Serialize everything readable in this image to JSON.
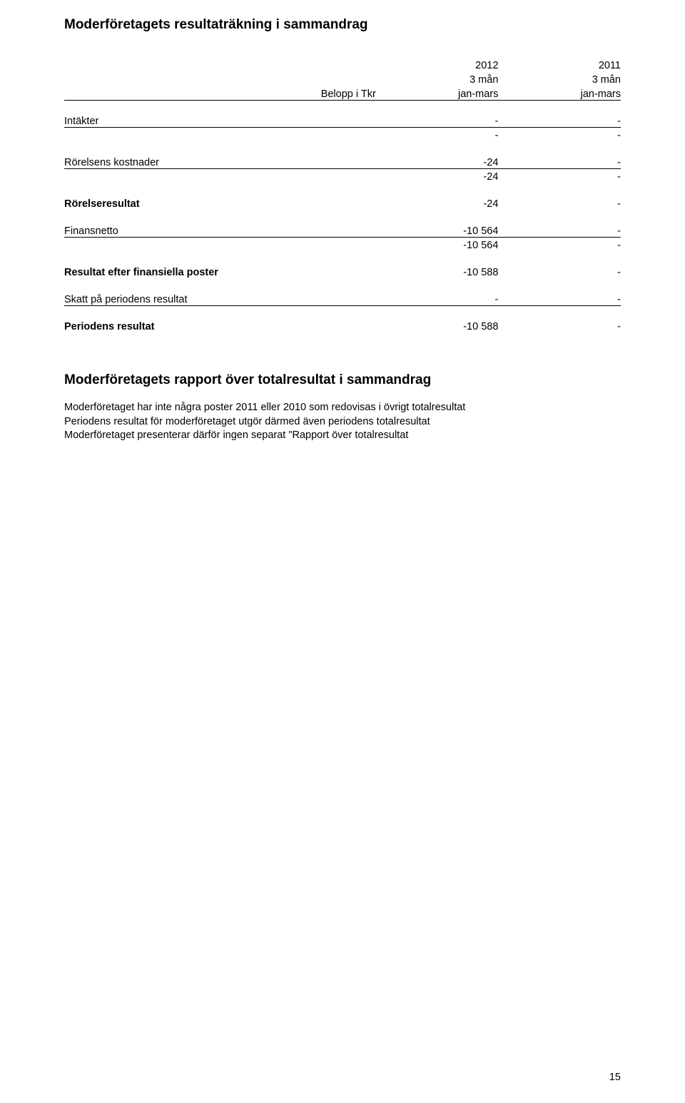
{
  "title": "Moderföretagets resultaträkning i sammandrag",
  "header": {
    "row_label": "Belopp i Tkr",
    "col1": {
      "year": "2012",
      "period": "3 mån",
      "range": "jan-mars"
    },
    "col2": {
      "year": "2011",
      "period": "3 mån",
      "range": "jan-mars"
    }
  },
  "rows": {
    "intakter": {
      "label": "Intäkter",
      "v1": "-",
      "v2": "-"
    },
    "intakter_sum": {
      "v1": "-",
      "v2": "-"
    },
    "rorelsens_kostnader": {
      "label": "Rörelsens kostnader",
      "v1": "-24",
      "v2": "-"
    },
    "rorelsens_kostnader_sum": {
      "v1": "-24",
      "v2": "-"
    },
    "rorelseresultat": {
      "label": "Rörelseresultat",
      "v1": "-24",
      "v2": "-"
    },
    "finansnetto": {
      "label": "Finansnetto",
      "v1": "-10 564",
      "v2": "-"
    },
    "finansnetto_sum": {
      "v1": "-10 564",
      "v2": "-"
    },
    "resultat_efter_fin": {
      "label": "Resultat efter finansiella poster",
      "v1": "-10 588",
      "v2": "-"
    },
    "skatt": {
      "label": "Skatt på periodens resultat",
      "v1": "-",
      "v2": "-"
    },
    "periodens_resultat": {
      "label": "Periodens resultat",
      "v1": "-10 588",
      "v2": "-"
    }
  },
  "section2": {
    "title": "Moderföretagets rapport över totalresultat i sammandrag",
    "line1": "Moderföretaget har inte några poster 2011 eller 2010 som redovisas i övrigt totalresultat",
    "line2": "Periodens resultat för moderföretaget utgör därmed även periodens totalresultat",
    "line3": "Moderföretaget presenterar därför ingen separat \"Rapport över totalresultat"
  },
  "page_number": "15"
}
